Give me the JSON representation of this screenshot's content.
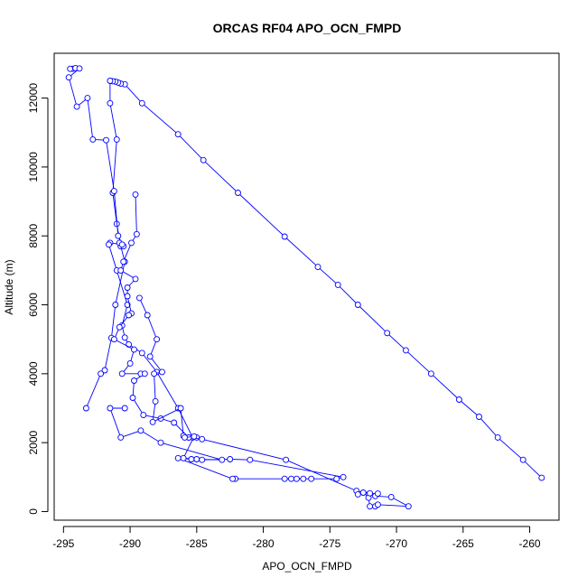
{
  "chart_data": {
    "type": "line",
    "title": "ORCAS RF04 APO_OCN_FMPD",
    "xlabel": "APO_OCN_FMPD",
    "ylabel": "Altitude (m)",
    "xlim": [
      -295.7,
      -257.8
    ],
    "ylim": [
      -250,
      13300
    ],
    "xticks": [
      -295,
      -290,
      -285,
      -280,
      -275,
      -270,
      -265,
      -260
    ],
    "yticks": [
      0,
      2000,
      4000,
      6000,
      8000,
      10000,
      12000
    ],
    "grid": false,
    "marker": "open-circle",
    "color": "#0000ff",
    "series": [
      {
        "values": [
          [
            -259.1,
            980
          ],
          [
            -260.5,
            1500
          ],
          [
            -262.4,
            2150
          ],
          [
            -263.8,
            2750
          ],
          [
            -265.3,
            3250
          ],
          [
            -267.4,
            4000
          ],
          [
            -269.3,
            4680
          ],
          [
            -270.7,
            5180
          ],
          [
            -272.9,
            6000
          ],
          [
            -274.4,
            6580
          ],
          [
            -275.9,
            7100
          ],
          [
            -278.4,
            7980
          ],
          [
            -281.9,
            9250
          ],
          [
            -284.5,
            10200
          ],
          [
            -286.4,
            10950
          ],
          [
            -289.1,
            11850
          ],
          [
            -290.4,
            12400
          ],
          [
            -290.7,
            12420
          ],
          [
            -290.9,
            12450
          ],
          [
            -291.1,
            12480
          ],
          [
            -291.3,
            12490
          ],
          [
            -291.5,
            12500
          ],
          [
            -291.5,
            11850
          ],
          [
            -291.0,
            10800
          ],
          [
            -291.3,
            9250
          ],
          [
            -291.0,
            8350
          ],
          [
            -290.7,
            7700
          ],
          [
            -290.4,
            7250
          ],
          [
            -291.1,
            6000
          ],
          [
            -291.4,
            5040
          ],
          [
            -291.9,
            4100
          ],
          [
            -292.2,
            4000
          ],
          [
            -293.3,
            3000
          ]
        ]
      },
      {
        "values": [
          [
            -294.3,
            12850
          ],
          [
            -294.5,
            12850
          ],
          [
            -294.1,
            12870
          ],
          [
            -293.8,
            12860
          ],
          [
            -294.6,
            12600
          ],
          [
            -294.0,
            11750
          ],
          [
            -293.2,
            12000
          ],
          [
            -292.8,
            10800
          ],
          [
            -291.8,
            10780
          ],
          [
            -291.2,
            9300
          ],
          [
            -290.9,
            8000
          ],
          [
            -290.5,
            7700
          ],
          [
            -290.8,
            7800
          ],
          [
            -290.6,
            7750
          ],
          [
            -291.5,
            7800
          ],
          [
            -291.6,
            7750
          ],
          [
            -291.0,
            7000
          ],
          [
            -290.2,
            6000
          ],
          [
            -290.6,
            5400
          ],
          [
            -290.4,
            5050
          ],
          [
            -290.1,
            4850
          ],
          [
            -289.1,
            4600
          ],
          [
            -288.0,
            4050
          ],
          [
            -286.4,
            3000
          ],
          [
            -285.3,
            2150
          ],
          [
            -285.6,
            2150
          ],
          [
            -285.0,
            2150
          ]
        ]
      },
      {
        "values": [
          [
            -289.6,
            9200
          ],
          [
            -289.5,
            8050
          ],
          [
            -289.9,
            7800
          ],
          [
            -290.5,
            7250
          ],
          [
            -290.7,
            7000
          ],
          [
            -289.6,
            6750
          ],
          [
            -290.2,
            6500
          ],
          [
            -290.2,
            6250
          ],
          [
            -289.9,
            5750
          ],
          [
            -290.1,
            5700
          ],
          [
            -290.8,
            5350
          ],
          [
            -291.2,
            5000
          ],
          [
            -289.7,
            4700
          ],
          [
            -290.0,
            4300
          ],
          [
            -290.6,
            4000
          ],
          [
            -289.2,
            4000
          ],
          [
            -288.9,
            4000
          ],
          [
            -289.7,
            3800
          ],
          [
            -289.8,
            3300
          ],
          [
            -289.0,
            2800
          ],
          [
            -287.7,
            2700
          ],
          [
            -286.7,
            2580
          ],
          [
            -285.6,
            2150
          ],
          [
            -284.6,
            2100
          ],
          [
            -278.3,
            1500
          ],
          [
            -273.0,
            600
          ],
          [
            -272.5,
            550
          ],
          [
            -272.1,
            500
          ],
          [
            -272.1,
            400
          ],
          [
            -272.0,
            150
          ],
          [
            -271.6,
            150
          ],
          [
            -271.4,
            200
          ],
          [
            -269.1,
            150
          ],
          [
            -270.4,
            420
          ],
          [
            -271.6,
            450
          ],
          [
            -271.4,
            520
          ],
          [
            -272.0,
            530
          ],
          [
            -272.9,
            500
          ]
        ]
      },
      {
        "values": [
          [
            -289.3,
            6200
          ],
          [
            -288.7,
            5700
          ],
          [
            -288.0,
            5000
          ],
          [
            -288.5,
            4500
          ],
          [
            -287.6,
            4050
          ],
          [
            -288.2,
            4000
          ],
          [
            -288.1,
            3200
          ],
          [
            -288.3,
            2600
          ],
          [
            -286.2,
            3000
          ],
          [
            -286.0,
            2200
          ],
          [
            -285.9,
            2150
          ],
          [
            -285.2,
            2180
          ],
          [
            -286.0,
            1550
          ],
          [
            -285.0,
            1520
          ],
          [
            -284.6,
            1500
          ],
          [
            -282.5,
            1520
          ],
          [
            -281.0,
            1500
          ],
          [
            -274.0,
            1000
          ],
          [
            -274.5,
            950
          ],
          [
            -276.4,
            950
          ],
          [
            -277.0,
            950
          ],
          [
            -277.5,
            950
          ],
          [
            -277.9,
            950
          ],
          [
            -278.4,
            950
          ],
          [
            -282.1,
            950
          ],
          [
            -282.3,
            950
          ],
          [
            -286.4,
            1550
          ],
          [
            -285.4,
            1520
          ],
          [
            -283.1,
            1500
          ],
          [
            -287.7,
            2000
          ],
          [
            -289.2,
            2350
          ],
          [
            -290.7,
            2150
          ],
          [
            -291.5,
            3000
          ],
          [
            -290.4,
            3000
          ]
        ]
      }
    ]
  }
}
